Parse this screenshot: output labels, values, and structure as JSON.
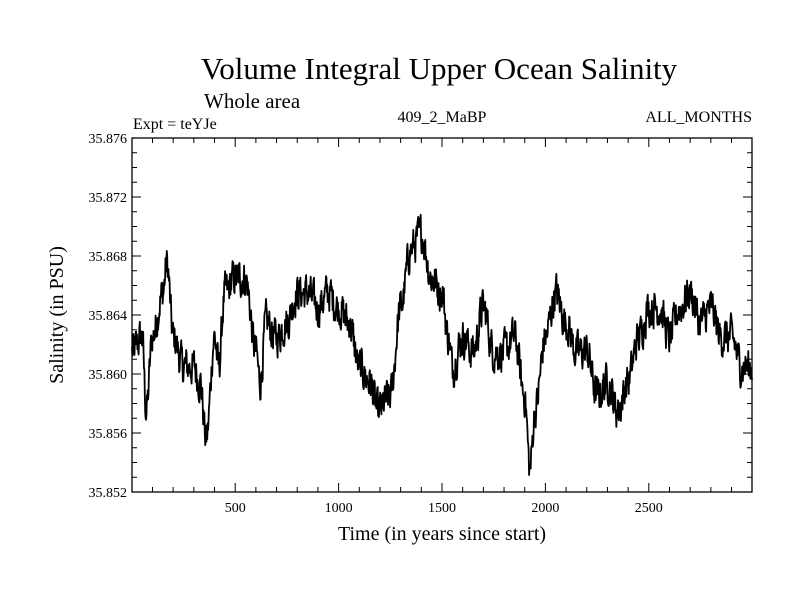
{
  "chart_data": {
    "type": "line",
    "title": "Volume Integral Upper Ocean Salinity",
    "subtitle": "Whole area",
    "expt_label": "Expt = teYJe",
    "run_label": "409_2_MaBP",
    "period_label": "ALL_MONTHS",
    "xlabel": "Time (in years since start)",
    "ylabel": "Salinity (in PSU)",
    "xlim": [
      1,
      2999
    ],
    "ylim": [
      35.852,
      35.876
    ],
    "x_ticks": [
      500,
      1000,
      1500,
      2000,
      2500
    ],
    "x_tick_labels": [
      "500",
      "1000",
      "1500",
      "2000",
      "2500"
    ],
    "y_ticks": [
      35.852,
      35.856,
      35.86,
      35.864,
      35.868,
      35.872,
      35.876
    ],
    "y_tick_labels": [
      "35.852",
      "35.856",
      "35.860",
      "35.864",
      "35.868",
      "35.872",
      "35.876"
    ],
    "grid": false,
    "series": [
      {
        "name": "Volume integral upper ocean salinity",
        "color": "#000000",
        "anchors_x": [
          1,
          50,
          70,
          100,
          150,
          170,
          200,
          250,
          300,
          330,
          360,
          400,
          420,
          450,
          500,
          550,
          600,
          620,
          650,
          700,
          750,
          800,
          850,
          900,
          950,
          1000,
          1050,
          1100,
          1150,
          1190,
          1250,
          1300,
          1350,
          1400,
          1450,
          1500,
          1530,
          1550,
          1600,
          1650,
          1700,
          1750,
          1800,
          1850,
          1900,
          1925,
          1950,
          2000,
          2050,
          2100,
          2150,
          2200,
          2250,
          2300,
          2350,
          2400,
          2450,
          2500,
          2550,
          2600,
          2650,
          2700,
          2750,
          2800,
          2850,
          2900,
          2950,
          2999
        ],
        "anchors_y": [
          35.8615,
          35.8625,
          35.8575,
          35.8625,
          35.8655,
          35.8675,
          35.8625,
          35.8605,
          35.8605,
          35.8595,
          35.8555,
          35.8625,
          35.8605,
          35.8655,
          35.8665,
          35.8665,
          35.8615,
          35.8595,
          35.8635,
          35.8625,
          35.8635,
          35.8655,
          35.8655,
          35.8645,
          35.8655,
          35.8645,
          35.8635,
          35.8605,
          35.8595,
          35.8575,
          35.8585,
          35.8645,
          35.8685,
          35.8695,
          35.8665,
          35.8655,
          35.8625,
          35.8605,
          35.8625,
          35.8615,
          35.8645,
          35.8615,
          35.8615,
          35.8625,
          35.8585,
          35.8535,
          35.8575,
          35.8625,
          35.8655,
          35.8635,
          35.8615,
          35.8615,
          35.8585,
          35.8595,
          35.8575,
          35.8595,
          35.8625,
          35.8645,
          35.8645,
          35.8625,
          35.8645,
          35.8655,
          35.8635,
          35.8645,
          35.8625,
          35.8625,
          35.8605,
          35.8605
        ],
        "noise_amplitude": 0.0022,
        "samples": 1500
      }
    ]
  }
}
